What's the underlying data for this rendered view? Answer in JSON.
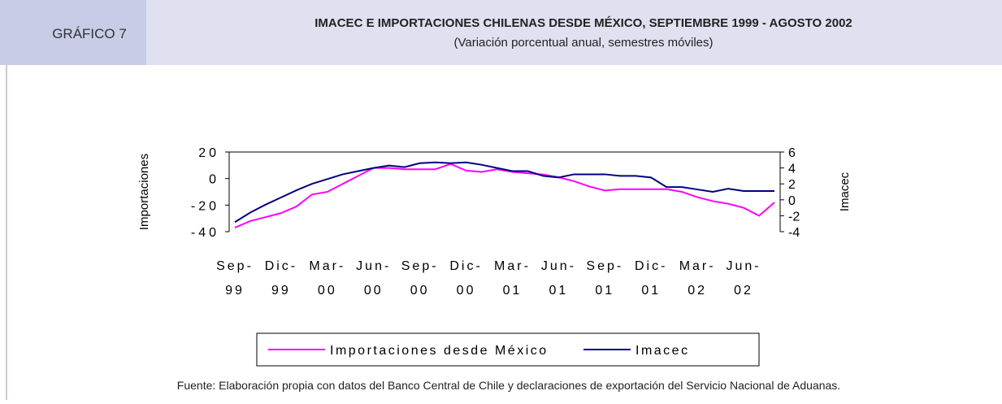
{
  "chart_data": {
    "type": "line",
    "label": "GRÁFICO 7",
    "title": "IMACEC E IMPORTACIONES CHILENAS DESDE MÉXICO, SEPTIEMBRE 1999 - AGOSTO 2002",
    "subtitle": "(Variación porcentual anual, semestres móviles)",
    "source": "Fuente: Elaboración propia con datos del Banco Central de Chile y declaraciones de exportación del Servicio Nacional de Aduanas.",
    "ylabel": "Importaciones",
    "y2label": "Imacec",
    "categories": [
      "Sep-99",
      null,
      null,
      "Dic-99",
      null,
      null,
      "Mar-00",
      null,
      null,
      "Jun-00",
      null,
      null,
      "Sep-00",
      null,
      null,
      "Dic-00",
      null,
      null,
      "Mar-01",
      null,
      null,
      "Jun-01",
      null,
      null,
      "Sep-01",
      null,
      null,
      "Dic-01",
      null,
      null,
      "Mar-02",
      null,
      null,
      "Jun-02",
      null,
      null
    ],
    "ylim": [
      -40,
      20
    ],
    "yticks": [
      {
        "value": -40,
        "label": "-40"
      },
      {
        "value": -20,
        "label": "-20"
      },
      {
        "value": 0,
        "label": "0"
      },
      {
        "value": 20,
        "label": "20"
      }
    ],
    "y2lim": [
      -4,
      6
    ],
    "y2ticks": [
      -4,
      -2,
      0,
      2,
      4,
      6
    ],
    "series": [
      {
        "name": "Importaciones desde México",
        "color": "#ff00ff",
        "values": [
          -37,
          -32,
          -29,
          -26,
          -21,
          -12,
          -10,
          -4,
          2,
          8,
          8,
          7,
          7,
          7,
          11,
          6,
          5,
          7,
          5,
          4,
          3,
          1,
          -2,
          -6,
          -9,
          -8,
          -8,
          -8,
          -8,
          -10,
          -14,
          -17,
          -19,
          -22,
          -28,
          -18
        ]
      },
      {
        "name": "Imacec",
        "color": "#000080",
        "axis": "y2",
        "values": [
          -2.8,
          -1.6,
          -0.6,
          0.3,
          1.2,
          2.0,
          2.6,
          3.2,
          3.6,
          4.0,
          4.3,
          4.1,
          4.6,
          4.7,
          4.6,
          4.7,
          4.4,
          4.0,
          3.6,
          3.6,
          3.0,
          2.8,
          3.2,
          3.2,
          3.2,
          3.0,
          3.0,
          2.8,
          1.6,
          1.6,
          1.3,
          1.0,
          1.4,
          1.1,
          1.1,
          1.1
        ]
      }
    ],
    "legend": "bottom"
  }
}
